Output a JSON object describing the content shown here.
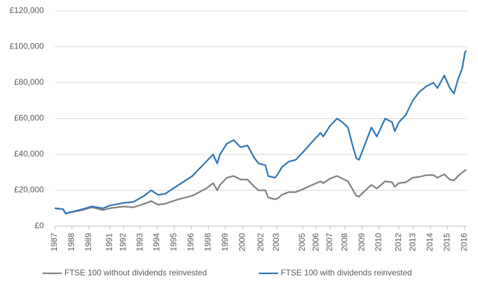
{
  "chart_data": {
    "type": "line",
    "x": [
      1987.0,
      1987.6,
      1987.8,
      1988.0,
      1989.0,
      1989.7,
      1990.5,
      1991.0,
      1992.0,
      1992.7,
      1993.5,
      1994.0,
      1994.5,
      1995.0,
      1996.0,
      1997.0,
      1998.0,
      1998.5,
      1998.8,
      1999.0,
      1999.5,
      2000.0,
      2000.5,
      2001.0,
      2001.5,
      2001.8,
      2002.3,
      2002.5,
      2003.0,
      2003.2,
      2003.5,
      2004.0,
      2004.5,
      2005.0,
      2005.7,
      2006.3,
      2006.5,
      2007.0,
      2007.5,
      2007.9,
      2008.3,
      2008.6,
      2008.9,
      2009.1,
      2009.5,
      2010.0,
      2010.4,
      2011.0,
      2011.5,
      2011.7,
      2012.0,
      2012.5,
      2013.0,
      2013.5,
      2014.0,
      2014.5,
      2014.8,
      2015.3,
      2015.7,
      2016.0,
      2016.3,
      2016.6,
      2016.8,
      2016.9
    ],
    "series": [
      {
        "name": "FTSE 100 without dividends reinvested",
        "color": "#7f7f7f",
        "values": [
          10000,
          9500,
          7000,
          7500,
          9000,
          10500,
          9000,
          10000,
          11000,
          10500,
          12500,
          14000,
          12000,
          12500,
          15000,
          17000,
          21000,
          24000,
          20000,
          23000,
          27000,
          28000,
          26000,
          26000,
          22000,
          20000,
          20000,
          16000,
          15000,
          15500,
          17500,
          19000,
          19000,
          20500,
          23000,
          25000,
          24000,
          26500,
          28000,
          26500,
          25000,
          21000,
          17000,
          16500,
          19500,
          23000,
          21000,
          25000,
          24500,
          22000,
          24000,
          24500,
          27000,
          27500,
          28500,
          28500,
          27000,
          29000,
          26000,
          25500,
          28000,
          30000,
          31000,
          31500
        ]
      },
      {
        "name": "FTSE 100 with dividends reinvested",
        "color": "#2e75b6",
        "values": [
          10000,
          9500,
          7000,
          7500,
          9500,
          11000,
          10000,
          11500,
          13000,
          13500,
          17000,
          20000,
          17500,
          18000,
          23000,
          28000,
          36000,
          40000,
          35000,
          40000,
          46000,
          48000,
          44000,
          45000,
          38000,
          35000,
          34000,
          28000,
          27000,
          29000,
          33000,
          36000,
          37000,
          41000,
          47000,
          52000,
          50000,
          56000,
          60000,
          58000,
          55000,
          46000,
          38000,
          37000,
          45000,
          55000,
          50000,
          60000,
          58000,
          53000,
          58000,
          62000,
          70000,
          75000,
          78000,
          80000,
          77000,
          84000,
          77000,
          74000,
          82000,
          88000,
          97000,
          98000
        ]
      }
    ],
    "xlim": [
      1987.0,
      2016.95
    ],
    "xticks": [
      {
        "value": 1987.0,
        "label": "1987"
      },
      {
        "value": 1988.24,
        "label": "1988"
      },
      {
        "value": 1989.48,
        "label": "1989"
      },
      {
        "value": 1991.0,
        "label": "1991"
      },
      {
        "value": 1992.0,
        "label": "1992"
      },
      {
        "value": 1993.2,
        "label": "1993"
      },
      {
        "value": 1994.44,
        "label": "1994"
      },
      {
        "value": 1995.68,
        "label": "1995"
      },
      {
        "value": 1996.92,
        "label": "1996"
      },
      {
        "value": 1998.16,
        "label": "1998"
      },
      {
        "value": 1999.4,
        "label": "1999"
      },
      {
        "value": 2000.64,
        "label": "2000"
      },
      {
        "value": 2002.0,
        "label": "2002"
      },
      {
        "value": 2003.12,
        "label": "2003"
      },
      {
        "value": 2005.0,
        "label": "2005"
      },
      {
        "value": 2006.0,
        "label": "2006"
      },
      {
        "value": 2007.0,
        "label": "2007"
      },
      {
        "value": 2008.08,
        "label": "2008"
      },
      {
        "value": 2009.32,
        "label": "2009"
      },
      {
        "value": 2010.56,
        "label": "2010"
      },
      {
        "value": 2012.0,
        "label": "2012"
      },
      {
        "value": 2013.04,
        "label": "2013"
      },
      {
        "value": 2014.28,
        "label": "2014"
      },
      {
        "value": 2015.52,
        "label": "2015"
      },
      {
        "value": 2016.76,
        "label": "2016"
      }
    ],
    "ylim": [
      0,
      120000
    ],
    "yticks": [
      {
        "value": 0,
        "label": "£0"
      },
      {
        "value": 20000,
        "label": "£20,000"
      },
      {
        "value": 40000,
        "label": "£40,000"
      },
      {
        "value": 60000,
        "label": "£60,000"
      },
      {
        "value": 80000,
        "label": "£80,000"
      },
      {
        "value": 100000,
        "label": "£100,000"
      },
      {
        "value": 120000,
        "label": "£120,000"
      }
    ],
    "grid": true,
    "legend": "bottom"
  }
}
